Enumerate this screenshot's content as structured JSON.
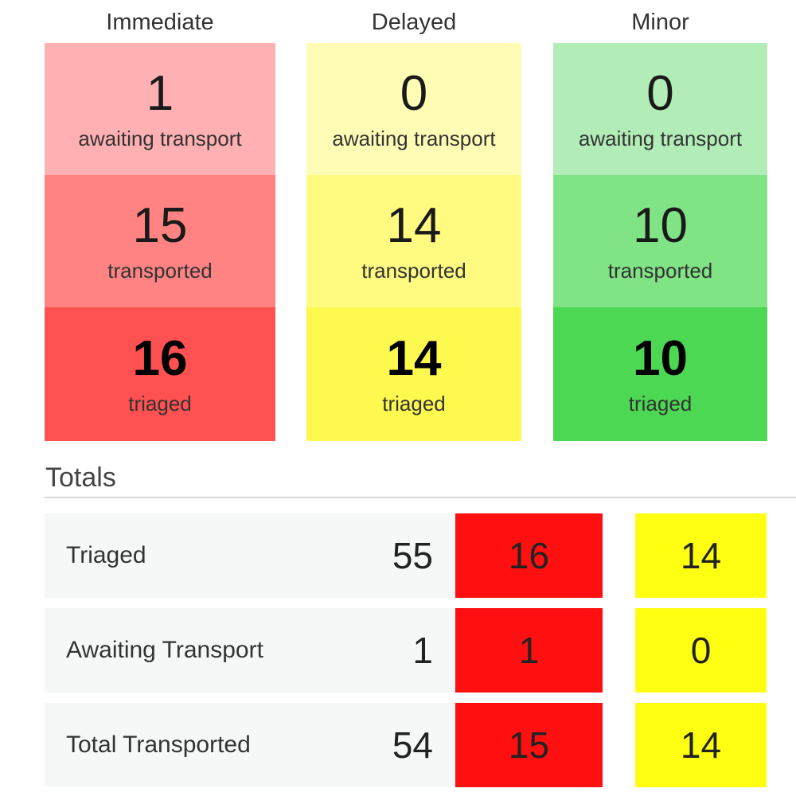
{
  "categories": [
    {
      "title": "Immediate",
      "awaiting": {
        "value": "1",
        "label": "awaiting transport",
        "color": "#ffb0b3"
      },
      "transported": {
        "value": "15",
        "label": "transported",
        "color": "#ff8383"
      },
      "triaged": {
        "value": "16",
        "label": "triaged",
        "color": "#ff5151"
      }
    },
    {
      "title": "Delayed",
      "awaiting": {
        "value": "0",
        "label": "awaiting transport",
        "color": "#fffcb6"
      },
      "transported": {
        "value": "14",
        "label": "transported",
        "color": "#fffa80"
      },
      "triaged": {
        "value": "14",
        "label": "triaged",
        "color": "#fdf94e"
      }
    },
    {
      "title": "Minor",
      "awaiting": {
        "value": "0",
        "label": "awaiting transport",
        "color": "#b2edb8"
      },
      "transported": {
        "value": "10",
        "label": "transported",
        "color": "#80e386"
      },
      "triaged": {
        "value": "10",
        "label": "triaged",
        "color": "#4cd853"
      }
    }
  ],
  "totals": {
    "title": "Totals",
    "colors": {
      "immediate": "#ff0f0f",
      "delayed": "#ffff11"
    },
    "rows": [
      {
        "label": "Triaged",
        "total": "55",
        "immediate": "16",
        "delayed": "14"
      },
      {
        "label": "Awaiting Transport",
        "total": "1",
        "immediate": "1",
        "delayed": "0"
      },
      {
        "label": "Total Transported",
        "total": "54",
        "immediate": "15",
        "delayed": "14"
      }
    ]
  }
}
